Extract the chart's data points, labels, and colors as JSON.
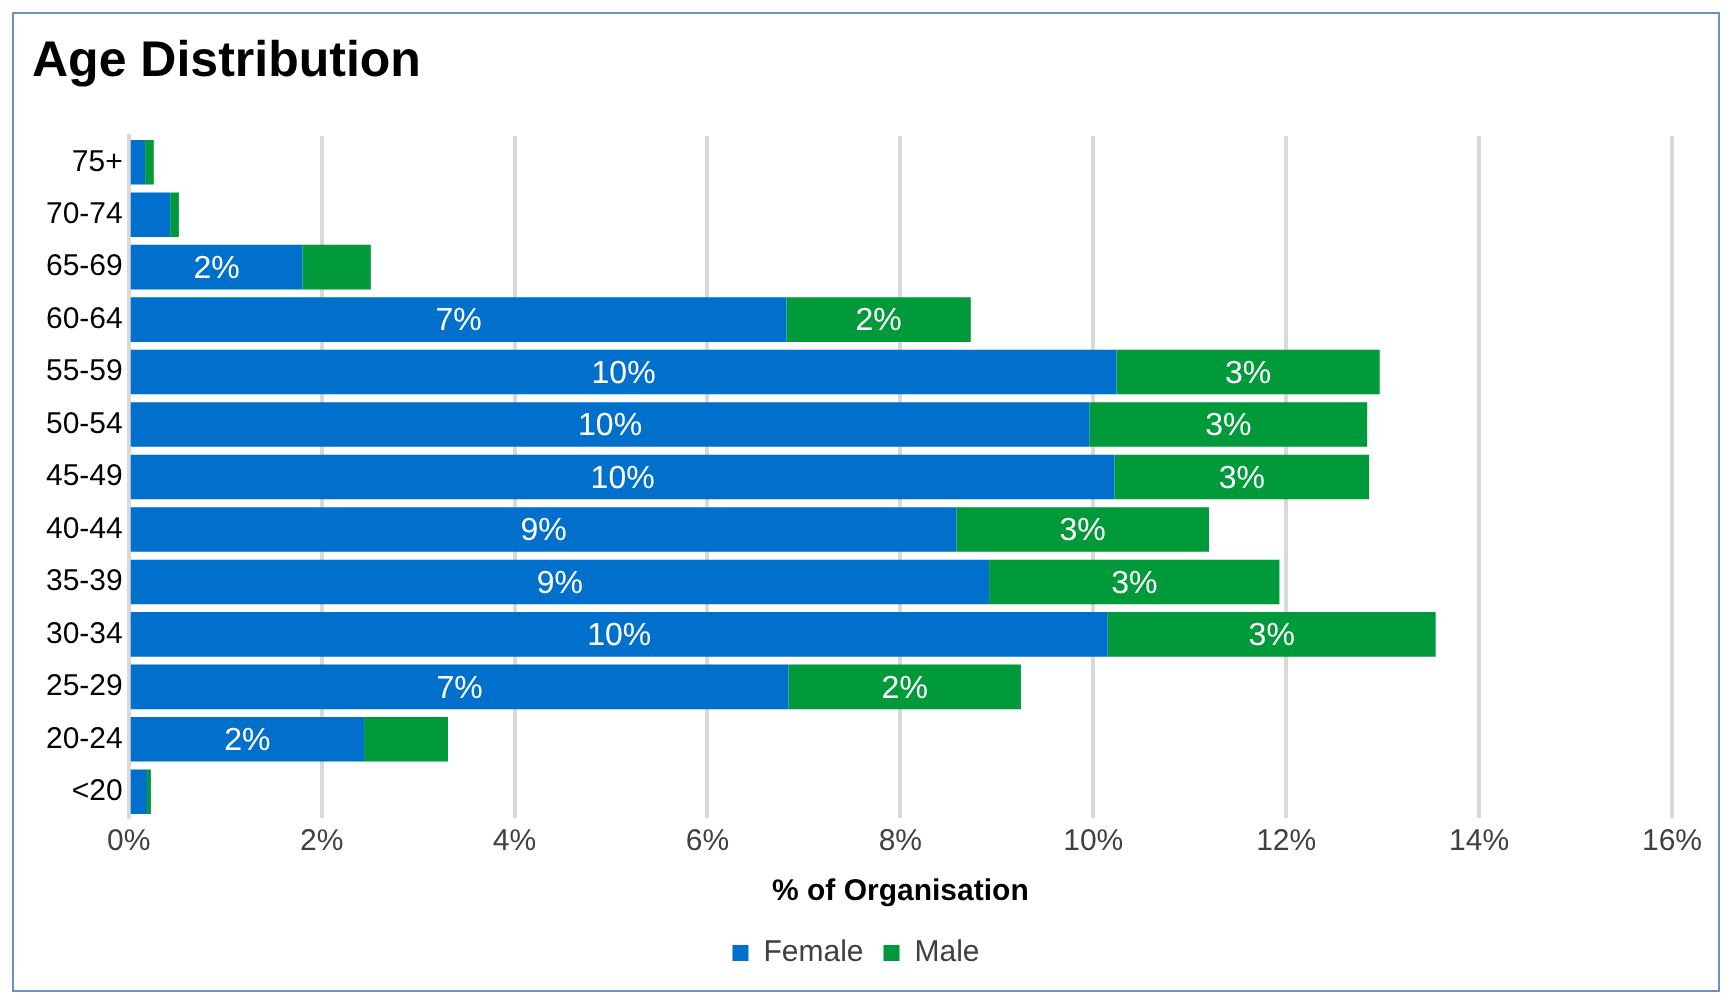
{
  "chart_data": {
    "type": "bar",
    "orientation": "horizontal",
    "stacked": true,
    "title": "Age Distribution",
    "xlabel": "% of Organisation",
    "categories": [
      "75+",
      "70-74",
      "65-69",
      "60-64",
      "55-59",
      "50-54",
      "45-49",
      "40-44",
      "35-39",
      "30-34",
      "25-29",
      "20-24",
      "<20"
    ],
    "series": [
      {
        "name": "Female",
        "color": "#0070cc",
        "values": [
          0.17,
          0.43,
          1.8,
          6.82,
          10.24,
          9.96,
          10.22,
          8.58,
          8.92,
          10.15,
          6.84,
          2.44,
          0.19
        ],
        "value_labels": [
          null,
          null,
          "2%",
          "7%",
          "10%",
          "10%",
          "10%",
          "9%",
          "9%",
          "10%",
          "7%",
          "2%",
          null
        ]
      },
      {
        "name": "Male",
        "color": "#009a3a",
        "values": [
          0.09,
          0.09,
          0.71,
          1.91,
          2.73,
          2.88,
          2.64,
          2.62,
          3.01,
          3.4,
          2.41,
          0.87,
          0.04
        ],
        "value_labels": [
          null,
          null,
          null,
          "2%",
          "3%",
          "3%",
          "3%",
          "3%",
          "3%",
          "3%",
          "2%",
          null,
          null
        ]
      }
    ],
    "xlim": [
      0,
      16
    ],
    "xticks": [
      {
        "value": 0,
        "label": "0%"
      },
      {
        "value": 2,
        "label": "2%"
      },
      {
        "value": 4,
        "label": "4%"
      },
      {
        "value": 6,
        "label": "6%"
      },
      {
        "value": 8,
        "label": "8%"
      },
      {
        "value": 10,
        "label": "10%"
      },
      {
        "value": 12,
        "label": "12%"
      },
      {
        "value": 14,
        "label": "14%"
      },
      {
        "value": 16,
        "label": "16%"
      }
    ],
    "grid": "x",
    "legend": "bottom"
  }
}
